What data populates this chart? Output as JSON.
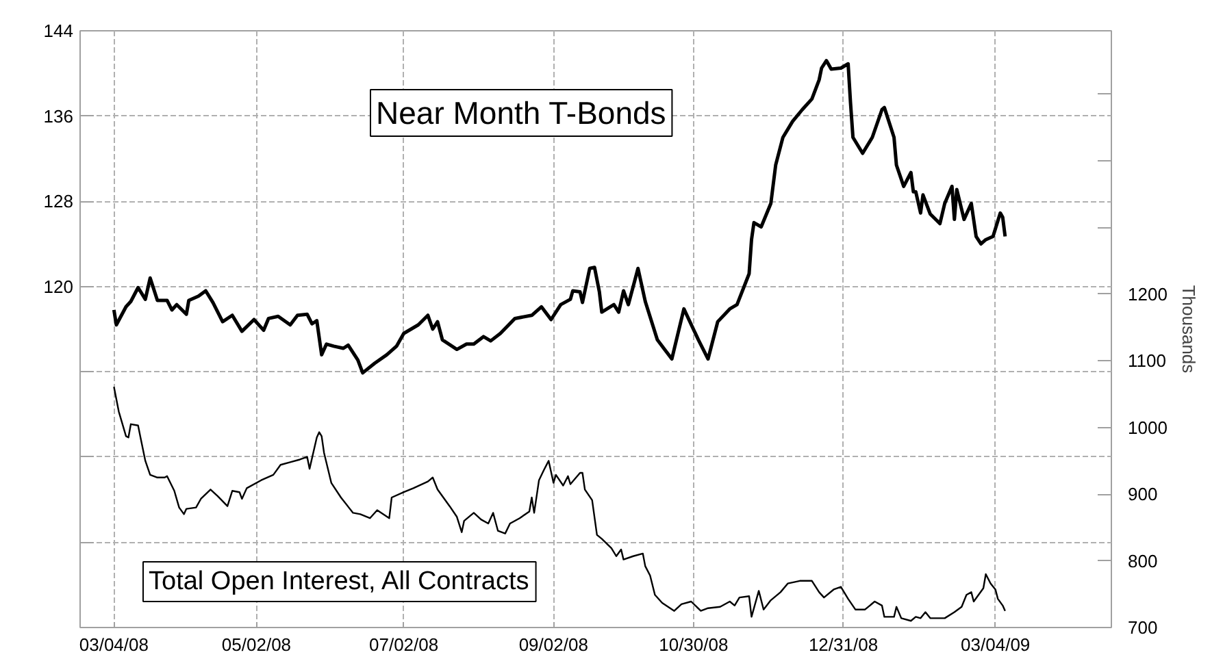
{
  "chart_data": {
    "type": "line",
    "y2label": "Thousands",
    "xlim": [
      "2008-02-19",
      "2009-04-21"
    ],
    "xticks": [
      {
        "value": "2008-03-04",
        "label": "03/04/08"
      },
      {
        "value": "2008-05-02",
        "label": "05/02/08"
      },
      {
        "value": "2008-07-02",
        "label": "07/02/08"
      },
      {
        "value": "2008-09-02",
        "label": "09/02/08"
      },
      {
        "value": "2008-10-30",
        "label": "10/30/08"
      },
      {
        "value": "2008-12-31",
        "label": "12/31/08"
      },
      {
        "value": "2009-03-04",
        "label": "03/04/09"
      }
    ],
    "ylim": [
      88,
      144
    ],
    "yticks": [
      {
        "value": 88,
        "label": null
      },
      {
        "value": 96,
        "label": null
      },
      {
        "value": 104,
        "label": null
      },
      {
        "value": 112,
        "label": null
      },
      120,
      128,
      136,
      144
    ],
    "y2lim": [
      700,
      1595
    ],
    "y2ticks": [
      700,
      800,
      900,
      1000,
      1100,
      1200,
      {
        "value": 1300,
        "label": null
      },
      {
        "value": 1400,
        "label": null
      },
      {
        "value": 1500,
        "label": null
      }
    ],
    "grid": true,
    "marker": "none",
    "line_style": "solid",
    "series": [
      {
        "name": "Near Month T-Bonds",
        "color": "#000000",
        "axis": "y",
        "x": [
          "2008-03-04",
          "2008-03-05",
          "2008-03-09",
          "2008-03-11",
          "2008-03-14",
          "2008-03-17",
          "2008-03-19",
          "2008-03-22",
          "2008-03-26",
          "2008-03-28",
          "2008-03-30",
          "2008-04-03",
          "2008-04-04",
          "2008-04-08",
          "2008-04-11",
          "2008-04-14",
          "2008-04-18",
          "2008-04-22",
          "2008-04-26",
          "2008-05-01",
          "2008-05-05",
          "2008-05-07",
          "2008-05-11",
          "2008-05-16",
          "2008-05-19",
          "2008-05-23",
          "2008-05-25",
          "2008-05-27",
          "2008-05-29",
          "2008-05-31",
          "2008-06-03",
          "2008-06-07",
          "2008-06-09",
          "2008-06-13",
          "2008-06-15",
          "2008-06-20",
          "2008-06-25",
          "2008-06-29",
          "2008-07-02",
          "2008-07-08",
          "2008-07-12",
          "2008-07-14",
          "2008-07-16",
          "2008-07-18",
          "2008-07-24",
          "2008-07-28",
          "2008-07-31",
          "2008-08-04",
          "2008-08-07",
          "2008-08-11",
          "2008-08-17",
          "2008-08-24",
          "2008-08-28",
          "2008-09-01",
          "2008-09-05",
          "2008-09-09",
          "2008-09-10",
          "2008-09-13",
          "2008-09-14",
          "2008-09-17",
          "2008-09-19",
          "2008-09-21",
          "2008-09-22",
          "2008-09-27",
          "2008-09-29",
          "2008-10-01",
          "2008-10-03",
          "2008-10-07",
          "2008-10-10",
          "2008-10-15",
          "2008-10-21",
          "2008-10-26",
          "2008-11-01",
          "2008-11-05",
          "2008-11-09",
          "2008-11-14",
          "2008-11-17",
          "2008-11-22",
          "2008-11-23",
          "2008-11-24",
          "2008-11-27",
          "2008-12-01",
          "2008-12-03",
          "2008-12-06",
          "2008-12-10",
          "2008-12-14",
          "2008-12-18",
          "2008-12-21",
          "2008-12-22",
          "2008-12-24",
          "2008-12-26",
          "2008-12-30",
          "2009-01-02",
          "2009-01-03",
          "2009-01-04",
          "2009-01-08",
          "2009-01-12",
          "2009-01-16",
          "2009-01-17",
          "2009-01-21",
          "2009-01-22",
          "2009-01-25",
          "2009-01-28",
          "2009-01-29",
          "2009-01-30",
          "2009-02-01",
          "2009-02-02",
          "2009-02-05",
          "2009-02-09",
          "2009-02-11",
          "2009-02-14",
          "2009-02-15",
          "2009-02-16",
          "2009-02-19",
          "2009-02-22",
          "2009-02-24",
          "2009-02-26",
          "2009-02-28",
          "2009-03-03",
          "2009-03-06",
          "2009-03-07",
          "2009-03-08"
        ],
        "values": [
          117.8,
          116.4,
          118.1,
          118.6,
          119.9,
          118.8,
          120.8,
          118.7,
          118.7,
          117.8,
          118.3,
          117.4,
          118.7,
          119.1,
          119.6,
          118.5,
          116.7,
          117.3,
          115.8,
          116.9,
          115.9,
          117.0,
          117.2,
          116.4,
          117.3,
          117.4,
          116.5,
          116.8,
          113.6,
          114.6,
          114.4,
          114.2,
          114.5,
          113.1,
          111.9,
          112.8,
          113.6,
          114.4,
          115.6,
          116.4,
          117.3,
          116.0,
          116.7,
          115.0,
          114.1,
          114.6,
          114.6,
          115.3,
          114.9,
          115.6,
          117.0,
          117.3,
          118.1,
          116.9,
          118.3,
          118.8,
          119.6,
          119.5,
          118.5,
          121.7,
          121.8,
          119.5,
          117.6,
          118.3,
          117.6,
          119.6,
          118.3,
          121.7,
          118.6,
          115.0,
          113.2,
          117.9,
          115.0,
          113.2,
          116.7,
          117.9,
          118.3,
          121.2,
          124.4,
          126.0,
          125.6,
          127.8,
          131.4,
          134.0,
          135.5,
          136.6,
          137.6,
          139.4,
          140.5,
          141.2,
          140.4,
          140.5,
          140.9,
          137.2,
          134.0,
          132.5,
          134.0,
          136.6,
          136.8,
          134.0,
          131.4,
          129.4,
          130.7,
          128.9,
          128.9,
          126.9,
          128.6,
          126.8,
          125.9,
          127.8,
          129.4,
          126.3,
          129.1,
          126.3,
          127.8,
          124.7,
          124.0,
          124.4,
          124.7,
          126.9,
          126.5,
          124.7
        ]
      },
      {
        "name": "Total Open Interest, All Contracts",
        "color": "#000000",
        "axis": "y2",
        "x": [
          "2008-03-04",
          "2008-03-06",
          "2008-03-09",
          "2008-03-10",
          "2008-03-11",
          "2008-03-14",
          "2008-03-15",
          "2008-03-17",
          "2008-03-19",
          "2008-03-22",
          "2008-03-25",
          "2008-03-26",
          "2008-03-29",
          "2008-03-31",
          "2008-04-02",
          "2008-04-03",
          "2008-04-07",
          "2008-04-09",
          "2008-04-13",
          "2008-04-16",
          "2008-04-20",
          "2008-04-22",
          "2008-04-25",
          "2008-04-26",
          "2008-04-28",
          "2008-05-04",
          "2008-05-09",
          "2008-05-12",
          "2008-05-16",
          "2008-05-20",
          "2008-05-23",
          "2008-05-24",
          "2008-05-27",
          "2008-05-28",
          "2008-05-29",
          "2008-05-30",
          "2008-06-02",
          "2008-06-06",
          "2008-06-11",
          "2008-06-14",
          "2008-06-18",
          "2008-06-21",
          "2008-06-26",
          "2008-06-27",
          "2008-07-02",
          "2008-07-06",
          "2008-07-12",
          "2008-07-14",
          "2008-07-16",
          "2008-07-21",
          "2008-07-24",
          "2008-07-26",
          "2008-07-27",
          "2008-07-31",
          "2008-08-03",
          "2008-08-06",
          "2008-08-08",
          "2008-08-10",
          "2008-08-13",
          "2008-08-15",
          "2008-08-19",
          "2008-08-23",
          "2008-08-24",
          "2008-08-25",
          "2008-08-27",
          "2008-08-29",
          "2008-08-31",
          "2008-09-02",
          "2008-09-03",
          "2008-09-06",
          "2008-09-08",
          "2008-09-09",
          "2008-09-13",
          "2008-09-14",
          "2008-09-15",
          "2008-09-18",
          "2008-09-20",
          "2008-09-22",
          "2008-09-26",
          "2008-09-28",
          "2008-09-30",
          "2008-10-01",
          "2008-10-05",
          "2008-10-09",
          "2008-10-10",
          "2008-10-12",
          "2008-10-14",
          "2008-10-17",
          "2008-10-22",
          "2008-10-25",
          "2008-10-29",
          "2008-11-02",
          "2008-11-05",
          "2008-11-10",
          "2008-11-14",
          "2008-11-16",
          "2008-11-18",
          "2008-11-22",
          "2008-11-23",
          "2008-11-26",
          "2008-11-28",
          "2008-12-01",
          "2008-12-05",
          "2008-12-08",
          "2008-12-13",
          "2008-12-18",
          "2008-12-21",
          "2008-12-23",
          "2008-12-27",
          "2008-12-30",
          "2009-01-02",
          "2009-01-05",
          "2009-01-09",
          "2009-01-13",
          "2009-01-16",
          "2009-01-17",
          "2009-01-21",
          "2009-01-22",
          "2009-01-24",
          "2009-01-28",
          "2009-01-30",
          "2009-02-01",
          "2009-02-03",
          "2009-02-05",
          "2009-02-11",
          "2009-02-15",
          "2009-02-18",
          "2009-02-20",
          "2009-02-22",
          "2009-02-23",
          "2009-02-27",
          "2009-02-28",
          "2009-03-02",
          "2009-03-04",
          "2009-03-05",
          "2009-03-07",
          "2009-03-08"
        ],
        "values": [
          1061,
          1024,
          987,
          985,
          1005,
          1003,
          985,
          950,
          929,
          925,
          925,
          927,
          905,
          880,
          870,
          878,
          880,
          893,
          907,
          897,
          882,
          905,
          903,
          893,
          909,
          921,
          929,
          944,
          948,
          952,
          956,
          938,
          985,
          993,
          987,
          962,
          917,
          895,
          872,
          870,
          864,
          876,
          864,
          895,
          903,
          909,
          919,
          925,
          907,
          882,
          866,
          843,
          860,
          872,
          862,
          856,
          872,
          845,
          841,
          856,
          864,
          874,
          895,
          872,
          921,
          936,
          950,
          917,
          929,
          913,
          927,
          915,
          932,
          932,
          907,
          891,
          839,
          833,
          819,
          807,
          817,
          802,
          807,
          811,
          792,
          778,
          749,
          737,
          725,
          735,
          739,
          725,
          729,
          731,
          739,
          733,
          745,
          747,
          716,
          755,
          727,
          741,
          753,
          766,
          770,
          770,
          753,
          745,
          757,
          761,
          743,
          727,
          727,
          739,
          733,
          716,
          716,
          731,
          714,
          710,
          716,
          714,
          723,
          714,
          714,
          723,
          731,
          749,
          753,
          739,
          759,
          780,
          766,
          757,
          743,
          733,
          725
        ]
      }
    ]
  }
}
